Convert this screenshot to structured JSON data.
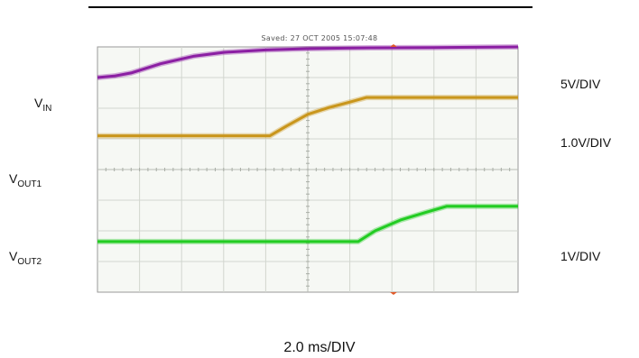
{
  "header": {
    "saved": "Saved: 27 OCT 2005 15:07:48"
  },
  "timebase": "2.0 ms/DIV",
  "channels": [
    {
      "main": "V",
      "sub": "IN",
      "scale": "5V/DIV",
      "color": "#8b1fa3"
    },
    {
      "main": "V",
      "sub": "OUT1",
      "scale": "1.0V/DIV",
      "color": "#c9961c"
    },
    {
      "main": "V",
      "sub": "OUT2",
      "scale": "1V/DIV",
      "color": "#22cc22"
    }
  ],
  "chart_data": {
    "type": "line",
    "title": "",
    "xlabel": "2.0 ms/DIV",
    "ylabel": "",
    "x_divisions": 10,
    "y_divisions": 8,
    "xlim": [
      0,
      10
    ],
    "ylim": [
      -4,
      4
    ],
    "grid": true,
    "series": [
      {
        "name": "VIN",
        "scale": "5V/DIV",
        "color": "#8b1fa3",
        "x": [
          0,
          0.4,
          0.8,
          1.5,
          2.3,
          3.0,
          4.0,
          5.0,
          6.5,
          8.0,
          10.0
        ],
        "y": [
          3.0,
          3.05,
          3.15,
          3.45,
          3.7,
          3.82,
          3.9,
          3.94,
          3.97,
          3.98,
          4.0
        ]
      },
      {
        "name": "VOUT1",
        "scale": "1.0V/DIV",
        "color": "#c9961c",
        "x": [
          0,
          4.1,
          4.5,
          5.0,
          5.5,
          6.0,
          6.4,
          10.0
        ],
        "y": [
          1.1,
          1.1,
          1.42,
          1.8,
          2.02,
          2.2,
          2.35,
          2.35
        ]
      },
      {
        "name": "VOUT2",
        "scale": "1V/DIV",
        "color": "#22cc22",
        "x": [
          0,
          6.2,
          6.6,
          7.2,
          7.8,
          8.3,
          10.0
        ],
        "y": [
          -2.35,
          -2.35,
          -2.0,
          -1.65,
          -1.4,
          -1.2,
          -1.2
        ]
      }
    ]
  }
}
